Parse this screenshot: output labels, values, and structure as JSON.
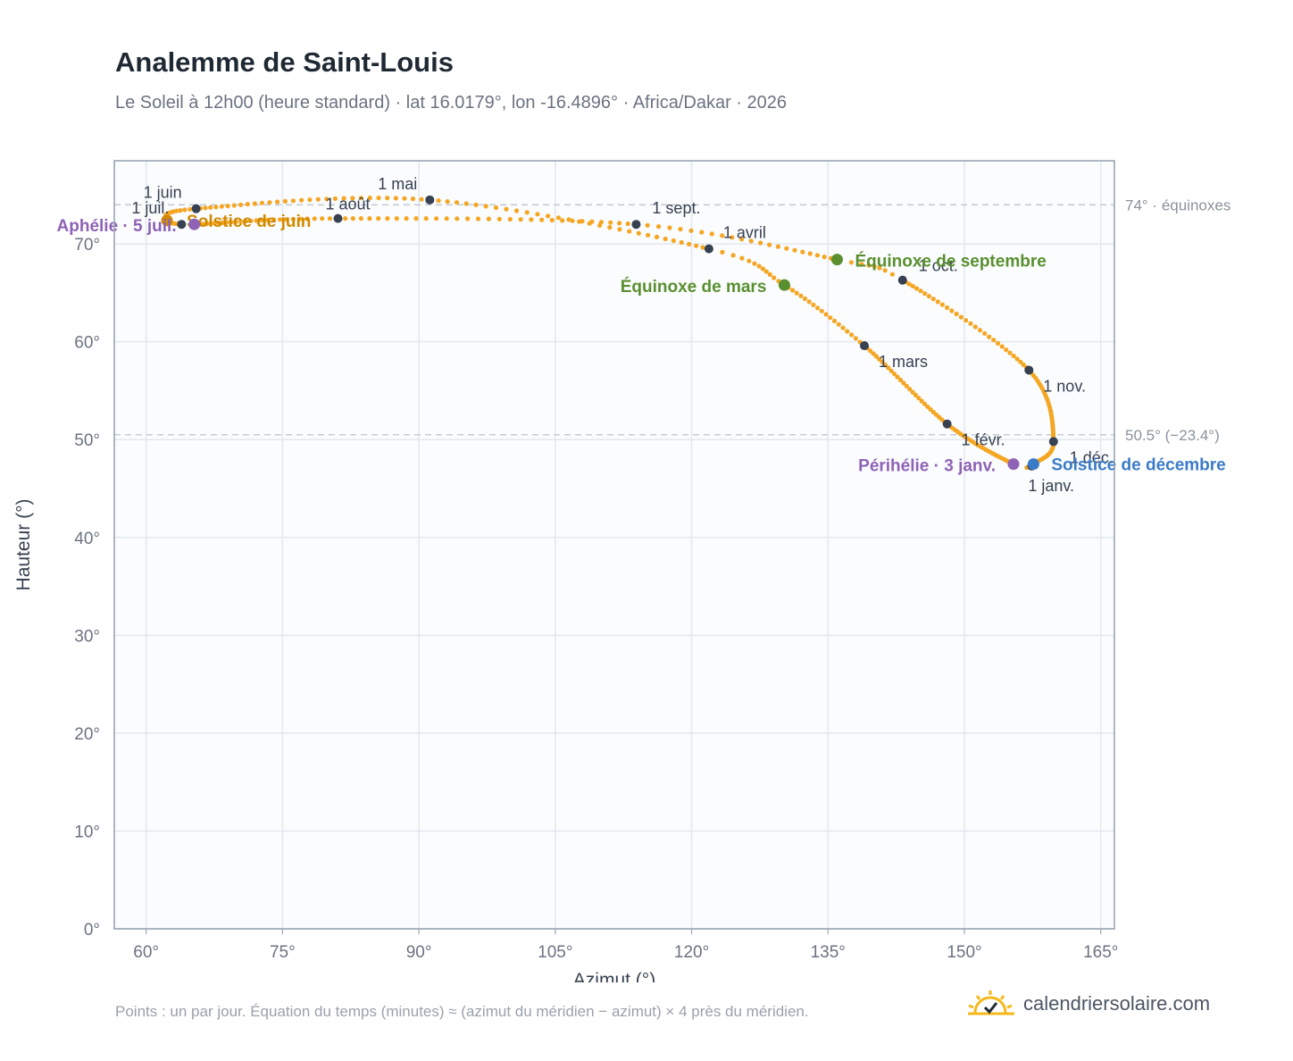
{
  "title": "Analemme de Saint-Louis",
  "subtitle": "Le Soleil à 12h00 (heure standard) · lat 16.0179°, lon -16.4896° · Africa/Dakar · 2026",
  "footnote": "Points : un par jour. Équation du temps (minutes) ≈ (azimut du méridien − azimut) × 4 près du méridien.",
  "brand": {
    "name": "calendriersolaire.com",
    "icon": "sun-check-icon"
  },
  "colors": {
    "curve": "#f5a623",
    "month_marker": "#374151",
    "equinox": "#5a8f2f",
    "june_solstice": "#d08a00",
    "december_solstice": "#3a7bc8",
    "apsis": "#8e63b5"
  },
  "chart_data": {
    "type": "scatter",
    "xlabel": "Azimut (°)",
    "ylabel": "Hauteur (°)",
    "xlim": [
      56.5,
      166.5
    ],
    "ylim": [
      0,
      78.5
    ],
    "x_ticks": [
      {
        "v": 60,
        "label": "60°"
      },
      {
        "v": 75,
        "label": "75°"
      },
      {
        "v": 90,
        "label": "90°"
      },
      {
        "v": 105,
        "label": "105°"
      },
      {
        "v": 120,
        "label": "120°"
      },
      {
        "v": 135,
        "label": "135°"
      },
      {
        "v": 150,
        "label": "150°"
      },
      {
        "v": 165,
        "label": "165°"
      }
    ],
    "y_ticks": [
      {
        "v": 0,
        "label": "0°"
      },
      {
        "v": 10,
        "label": "10°"
      },
      {
        "v": 20,
        "label": "20°"
      },
      {
        "v": 30,
        "label": "30°"
      },
      {
        "v": 40,
        "label": "40°"
      },
      {
        "v": 50,
        "label": "50°"
      },
      {
        "v": 60,
        "label": "60°"
      },
      {
        "v": 70,
        "label": "70°"
      }
    ],
    "grid": true,
    "reference_lines": [
      {
        "y": 74.0,
        "label": "74° · équinoxes"
      },
      {
        "y": 50.5,
        "label": "50.5° (−23.4°)"
      }
    ],
    "curve_anchors": [
      {
        "day": 1,
        "az": 157.4,
        "alt": 47.3
      },
      {
        "day": 3,
        "az": 155.4,
        "alt": 47.5
      },
      {
        "day": 32,
        "az": 148.1,
        "alt": 51.6
      },
      {
        "day": 60,
        "az": 139.0,
        "alt": 59.6
      },
      {
        "day": 79,
        "az": 130.2,
        "alt": 65.8
      },
      {
        "day": 91,
        "az": 121.9,
        "alt": 69.5
      },
      {
        "day": 121,
        "az": 91.2,
        "alt": 74.5
      },
      {
        "day": 152,
        "az": 65.5,
        "alt": 73.6
      },
      {
        "day": 172,
        "az": 62.3,
        "alt": 72.4
      },
      {
        "day": 182,
        "az": 63.9,
        "alt": 72.0
      },
      {
        "day": 186,
        "az": 65.3,
        "alt": 72.0
      },
      {
        "day": 213,
        "az": 81.1,
        "alt": 72.6
      },
      {
        "day": 244,
        "az": 113.9,
        "alt": 72.0
      },
      {
        "day": 266,
        "az": 136.0,
        "alt": 68.4
      },
      {
        "day": 274,
        "az": 143.2,
        "alt": 66.3
      },
      {
        "day": 305,
        "az": 157.1,
        "alt": 57.1
      },
      {
        "day": 335,
        "az": 159.8,
        "alt": 49.8
      },
      {
        "day": 355,
        "az": 157.6,
        "alt": 47.5
      },
      {
        "day": 366,
        "az": 157.4,
        "alt": 47.3
      }
    ],
    "month_markers": [
      {
        "label": "1 janv.",
        "az": 157.4,
        "alt": 47.3
      },
      {
        "label": "1 févr.",
        "az": 148.1,
        "alt": 51.6
      },
      {
        "label": "1 mars",
        "az": 139.0,
        "alt": 59.6
      },
      {
        "label": "1 avril",
        "az": 121.9,
        "alt": 69.5
      },
      {
        "label": "1 mai",
        "az": 91.2,
        "alt": 74.5
      },
      {
        "label": "1 juin",
        "az": 65.5,
        "alt": 73.6
      },
      {
        "label": "1 juil.",
        "az": 63.9,
        "alt": 72.0
      },
      {
        "label": "1 août",
        "az": 81.1,
        "alt": 72.6
      },
      {
        "label": "1 sept.",
        "az": 113.9,
        "alt": 72.0
      },
      {
        "label": "1 oct.",
        "az": 143.2,
        "alt": 66.3
      },
      {
        "label": "1 nov.",
        "az": 157.1,
        "alt": 57.1
      },
      {
        "label": "1 déc.",
        "az": 159.8,
        "alt": 49.8
      }
    ],
    "events": [
      {
        "label": "Équinoxe de mars",
        "kind": "equinox",
        "az": 130.2,
        "alt": 65.8
      },
      {
        "label": "Équinoxe de septembre",
        "kind": "equinox",
        "az": 136.0,
        "alt": 68.4
      },
      {
        "label": "Solstice de juin",
        "kind": "june_solstice",
        "az": 62.3,
        "alt": 72.4
      },
      {
        "label": "Solstice de décembre",
        "kind": "december_solstice",
        "az": 157.6,
        "alt": 47.5
      },
      {
        "label": "Aphélie · 5 juil.",
        "kind": "apsis",
        "az": 65.3,
        "alt": 72.0
      },
      {
        "label": "Périhélie · 3 janv.",
        "kind": "apsis",
        "az": 155.4,
        "alt": 47.5
      }
    ]
  }
}
